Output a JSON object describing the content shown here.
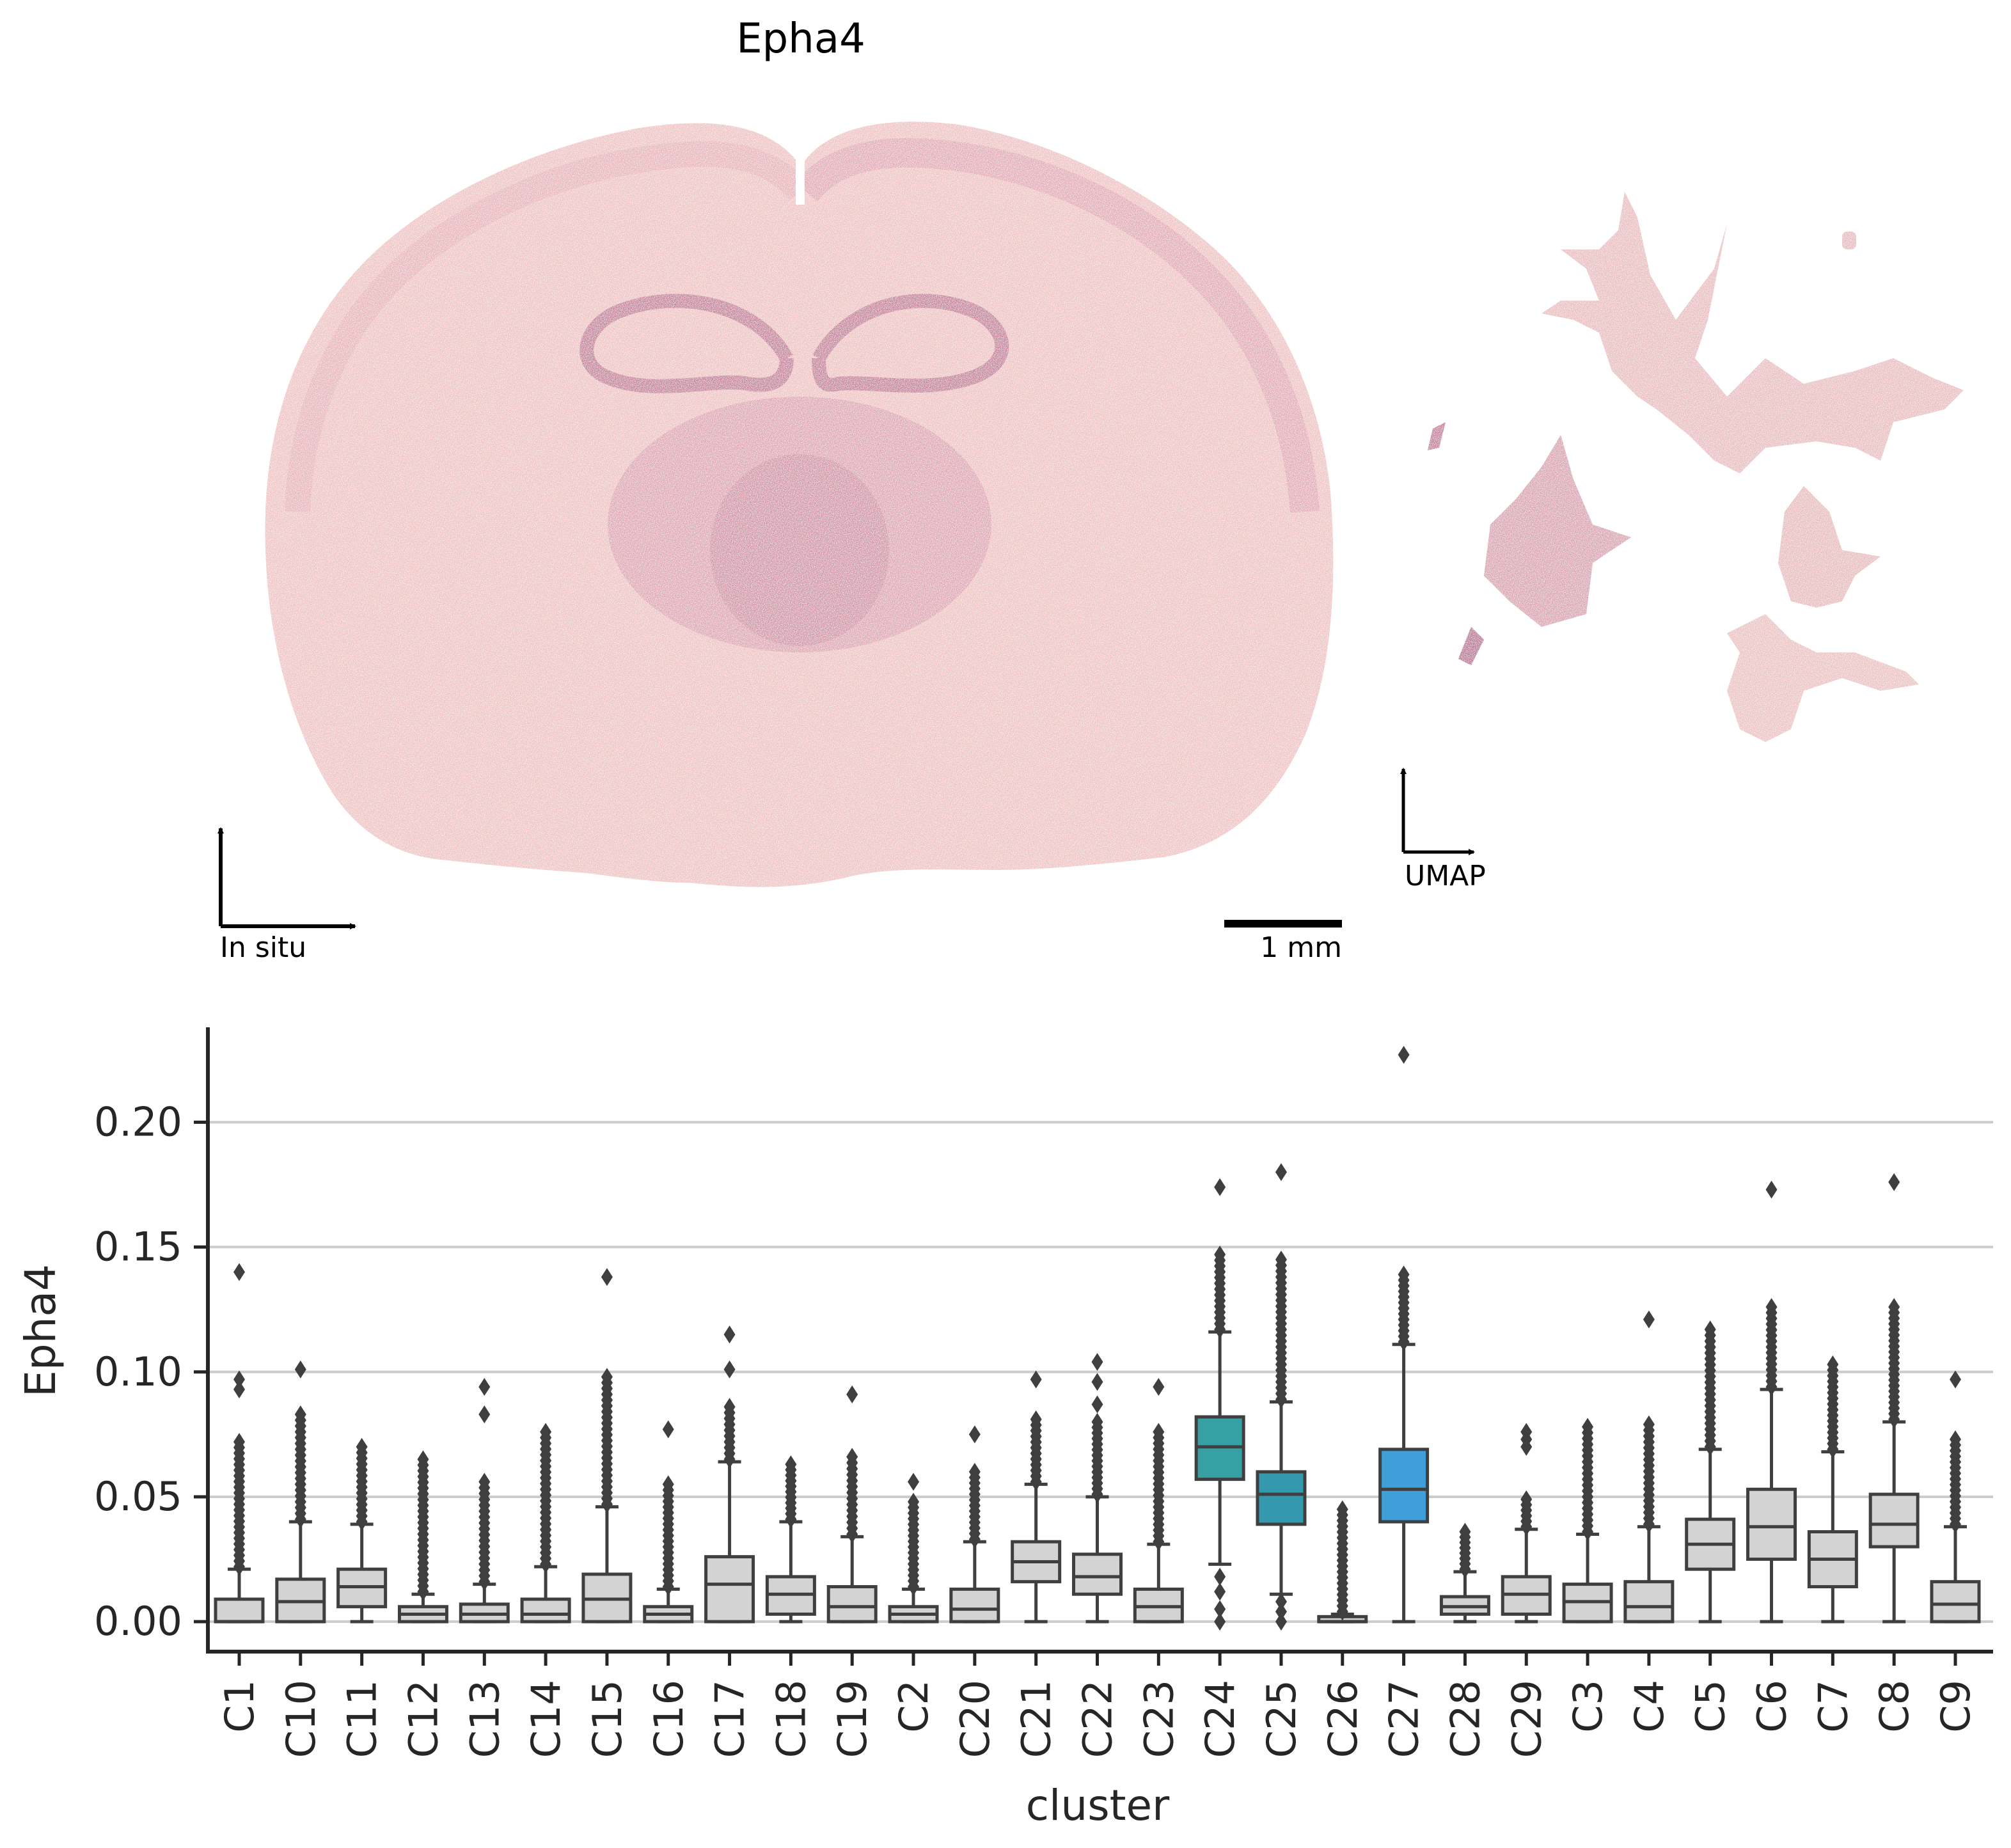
{
  "figure_title": "Epha4",
  "insitu_label": "In situ",
  "umap_label": "UMAP",
  "scalebar_label": "1 mm",
  "colors": {
    "tissue_light": "#efc3c3",
    "tissue_mid": "#e2a7ae",
    "tissue_dark": "#b56a8e",
    "box_gray": "#d3d3d3",
    "box_edge": "#3f3f3f",
    "grid": "#cccccc",
    "highlight_C24": "#36a0a4",
    "highlight_C25": "#3499ae",
    "highlight_C27": "#409ed8"
  },
  "chart_data": {
    "type": "box",
    "xlabel": "cluster",
    "ylabel": "Epha4",
    "ylim": [
      -0.012,
      0.238
    ],
    "yticks": [
      "0.00",
      "0.05",
      "0.10",
      "0.15",
      "0.20"
    ],
    "ytick_values": [
      0.0,
      0.05,
      0.1,
      0.15,
      0.2
    ],
    "grid": "horizontal",
    "categories": [
      "C1",
      "C10",
      "C11",
      "C12",
      "C13",
      "C14",
      "C15",
      "C16",
      "C17",
      "C18",
      "C19",
      "C2",
      "C20",
      "C21",
      "C22",
      "C23",
      "C24",
      "C25",
      "C26",
      "C27",
      "C28",
      "C29",
      "C3",
      "C4",
      "C5",
      "C6",
      "C7",
      "C8",
      "C9"
    ],
    "boxes": [
      {
        "q1": 0.0,
        "median": 0.0,
        "q3": 0.009,
        "whislo": 0.0,
        "whishi": 0.021,
        "fliers_from": 0.022,
        "fliers_to": 0.072,
        "extra_fliers": [
          0.093,
          0.097,
          0.14
        ]
      },
      {
        "q1": 0.0,
        "median": 0.008,
        "q3": 0.017,
        "whislo": 0.0,
        "whishi": 0.04,
        "fliers_from": 0.041,
        "fliers_to": 0.083,
        "extra_fliers": [
          0.101
        ]
      },
      {
        "q1": 0.006,
        "median": 0.014,
        "q3": 0.021,
        "whislo": 0.0,
        "whishi": 0.039,
        "fliers_from": 0.04,
        "fliers_to": 0.07,
        "extra_fliers": []
      },
      {
        "q1": 0.0,
        "median": 0.003,
        "q3": 0.006,
        "whislo": 0.0,
        "whishi": 0.011,
        "fliers_from": 0.012,
        "fliers_to": 0.065,
        "extra_fliers": []
      },
      {
        "q1": 0.0,
        "median": 0.003,
        "q3": 0.007,
        "whislo": 0.0,
        "whishi": 0.015,
        "fliers_from": 0.016,
        "fliers_to": 0.056,
        "extra_fliers": [
          0.083,
          0.094
        ]
      },
      {
        "q1": 0.0,
        "median": 0.003,
        "q3": 0.009,
        "whislo": 0.0,
        "whishi": 0.022,
        "fliers_from": 0.023,
        "fliers_to": 0.076,
        "extra_fliers": []
      },
      {
        "q1": 0.0,
        "median": 0.009,
        "q3": 0.019,
        "whislo": 0.0,
        "whishi": 0.046,
        "fliers_from": 0.047,
        "fliers_to": 0.098,
        "extra_fliers": [
          0.138
        ]
      },
      {
        "q1": 0.0,
        "median": 0.003,
        "q3": 0.006,
        "whislo": 0.0,
        "whishi": 0.013,
        "fliers_from": 0.014,
        "fliers_to": 0.055,
        "extra_fliers": [
          0.077
        ]
      },
      {
        "q1": 0.0,
        "median": 0.015,
        "q3": 0.026,
        "whislo": 0.0,
        "whishi": 0.064,
        "fliers_from": 0.065,
        "fliers_to": 0.086,
        "extra_fliers": [
          0.101,
          0.115
        ]
      },
      {
        "q1": 0.003,
        "median": 0.011,
        "q3": 0.018,
        "whislo": 0.0,
        "whishi": 0.04,
        "fliers_from": 0.041,
        "fliers_to": 0.063,
        "extra_fliers": []
      },
      {
        "q1": 0.0,
        "median": 0.006,
        "q3": 0.014,
        "whislo": 0.0,
        "whishi": 0.034,
        "fliers_from": 0.035,
        "fliers_to": 0.066,
        "extra_fliers": [
          0.091
        ]
      },
      {
        "q1": 0.0,
        "median": 0.003,
        "q3": 0.006,
        "whislo": 0.0,
        "whishi": 0.013,
        "fliers_from": 0.014,
        "fliers_to": 0.048,
        "extra_fliers": [
          0.056
        ]
      },
      {
        "q1": 0.0,
        "median": 0.005,
        "q3": 0.013,
        "whislo": 0.0,
        "whishi": 0.032,
        "fliers_from": 0.033,
        "fliers_to": 0.06,
        "extra_fliers": [
          0.075
        ]
      },
      {
        "q1": 0.016,
        "median": 0.024,
        "q3": 0.032,
        "whislo": 0.0,
        "whishi": 0.055,
        "fliers_from": 0.056,
        "fliers_to": 0.081,
        "extra_fliers": [
          0.097
        ]
      },
      {
        "q1": 0.011,
        "median": 0.018,
        "q3": 0.027,
        "whislo": 0.0,
        "whishi": 0.05,
        "fliers_from": 0.051,
        "fliers_to": 0.08,
        "extra_fliers": [
          0.087,
          0.096,
          0.104
        ]
      },
      {
        "q1": 0.0,
        "median": 0.006,
        "q3": 0.013,
        "whislo": 0.0,
        "whishi": 0.031,
        "fliers_from": 0.032,
        "fliers_to": 0.076,
        "extra_fliers": [
          0.094
        ]
      },
      {
        "q1": 0.057,
        "median": 0.07,
        "q3": 0.082,
        "whislo": 0.023,
        "whishi": 0.116,
        "fliers_from": 0.117,
        "fliers_to": 0.147,
        "extra_fliers": [
          0.174,
          0.0,
          0.005,
          0.012,
          0.018
        ]
      },
      {
        "q1": 0.039,
        "median": 0.051,
        "q3": 0.06,
        "whislo": 0.011,
        "whishi": 0.088,
        "fliers_from": 0.089,
        "fliers_to": 0.145,
        "extra_fliers": [
          0.18,
          0.0,
          0.004,
          0.008
        ]
      },
      {
        "q1": 0.0,
        "median": 0.0,
        "q3": 0.002,
        "whislo": 0.0,
        "whishi": 0.003,
        "fliers_from": 0.004,
        "fliers_to": 0.045,
        "extra_fliers": []
      },
      {
        "q1": 0.04,
        "median": 0.053,
        "q3": 0.069,
        "whislo": 0.0,
        "whishi": 0.111,
        "fliers_from": 0.112,
        "fliers_to": 0.139,
        "extra_fliers": [
          0.227
        ]
      },
      {
        "q1": 0.003,
        "median": 0.006,
        "q3": 0.01,
        "whislo": 0.0,
        "whishi": 0.02,
        "fliers_from": 0.021,
        "fliers_to": 0.036,
        "extra_fliers": []
      },
      {
        "q1": 0.003,
        "median": 0.011,
        "q3": 0.018,
        "whislo": 0.0,
        "whishi": 0.037,
        "fliers_from": 0.038,
        "fliers_to": 0.049,
        "extra_fliers": [
          0.07,
          0.073,
          0.076
        ]
      },
      {
        "q1": 0.0,
        "median": 0.008,
        "q3": 0.015,
        "whislo": 0.0,
        "whishi": 0.035,
        "fliers_from": 0.036,
        "fliers_to": 0.078,
        "extra_fliers": []
      },
      {
        "q1": 0.0,
        "median": 0.006,
        "q3": 0.016,
        "whislo": 0.0,
        "whishi": 0.038,
        "fliers_from": 0.039,
        "fliers_to": 0.079,
        "extra_fliers": [
          0.121
        ]
      },
      {
        "q1": 0.021,
        "median": 0.031,
        "q3": 0.041,
        "whislo": 0.0,
        "whishi": 0.069,
        "fliers_from": 0.07,
        "fliers_to": 0.117,
        "extra_fliers": []
      },
      {
        "q1": 0.025,
        "median": 0.038,
        "q3": 0.053,
        "whislo": 0.0,
        "whishi": 0.093,
        "fliers_from": 0.094,
        "fliers_to": 0.126,
        "extra_fliers": [
          0.173
        ]
      },
      {
        "q1": 0.014,
        "median": 0.025,
        "q3": 0.036,
        "whislo": 0.0,
        "whishi": 0.068,
        "fliers_from": 0.069,
        "fliers_to": 0.103,
        "extra_fliers": []
      },
      {
        "q1": 0.03,
        "median": 0.039,
        "q3": 0.051,
        "whislo": 0.0,
        "whishi": 0.08,
        "fliers_from": 0.081,
        "fliers_to": 0.126,
        "extra_fliers": [
          0.176
        ]
      },
      {
        "q1": 0.0,
        "median": 0.007,
        "q3": 0.016,
        "whislo": 0.0,
        "whishi": 0.038,
        "fliers_from": 0.039,
        "fliers_to": 0.073,
        "extra_fliers": [
          0.097
        ]
      }
    ],
    "highlight": {
      "C24": "#36a0a4",
      "C25": "#3499ae",
      "C27": "#409ed8"
    }
  }
}
